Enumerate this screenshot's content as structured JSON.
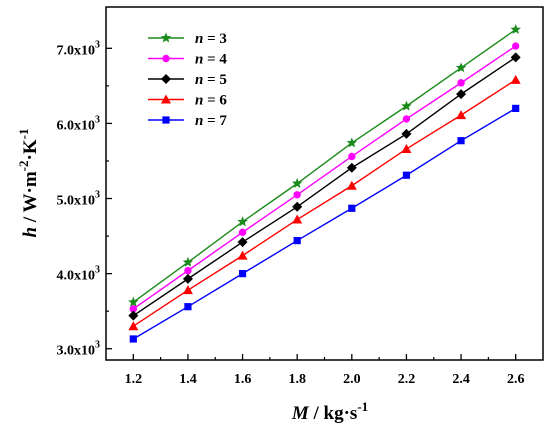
{
  "chart_data": {
    "type": "line",
    "x": [
      1.2,
      1.4,
      1.6,
      1.8,
      2.0,
      2.2,
      2.4,
      2.6
    ],
    "xlabel": {
      "symbol": "M",
      "rest": " / kg·s",
      "sup": "-1"
    },
    "ylabel": {
      "symbol": "h",
      "rest": " / W·m",
      "sup1": "-2",
      "mid": "·K",
      "sup2": "-1"
    },
    "xlim": [
      1.1,
      2.7
    ],
    "ylim": [
      2850,
      7550
    ],
    "xticks": [
      1.2,
      1.4,
      1.6,
      1.8,
      2.0,
      2.2,
      2.4,
      2.6
    ],
    "xtick_labels": [
      "1.2",
      "1.4",
      "1.6",
      "1.8",
      "2.0",
      "2.2",
      "2.4",
      "2.6"
    ],
    "yticks": [
      3000,
      4000,
      5000,
      6000,
      7000
    ],
    "ytick_labels": [
      {
        "base": "3.0x10",
        "exp": "3"
      },
      {
        "base": "4.0x10",
        "exp": "3"
      },
      {
        "base": "5.0x10",
        "exp": "3"
      },
      {
        "base": "6.0x10",
        "exp": "3"
      },
      {
        "base": "7.0x10",
        "exp": "3"
      }
    ],
    "grid": false,
    "legend_position": "top-left",
    "series": [
      {
        "name": "n = 3",
        "var": "n",
        "eq": " = 3",
        "color": "#1a8a1a",
        "marker": "star",
        "values": [
          3620,
          4150,
          4690,
          5200,
          5740,
          6230,
          6740,
          7250
        ]
      },
      {
        "name": "n = 4",
        "var": "n",
        "eq": " = 4",
        "color": "#ff00ff",
        "marker": "circle",
        "values": [
          3530,
          4040,
          4550,
          5050,
          5560,
          6060,
          6540,
          7030
        ]
      },
      {
        "name": "n = 5",
        "var": "n",
        "eq": " = 5",
        "color": "#000000",
        "marker": "diamond",
        "values": [
          3440,
          3930,
          4420,
          4890,
          5410,
          5860,
          6390,
          6880
        ]
      },
      {
        "name": "n = 6",
        "var": "n",
        "eq": " = 6",
        "color": "#ff0000",
        "marker": "triangle",
        "values": [
          3300,
          3780,
          4240,
          4720,
          5170,
          5660,
          6110,
          6580
        ]
      },
      {
        "name": "n = 7",
        "var": "n",
        "eq": " = 7",
        "color": "#0000ff",
        "marker": "square",
        "values": [
          3130,
          3560,
          4000,
          4440,
          4870,
          5310,
          5770,
          6200
        ]
      }
    ]
  }
}
